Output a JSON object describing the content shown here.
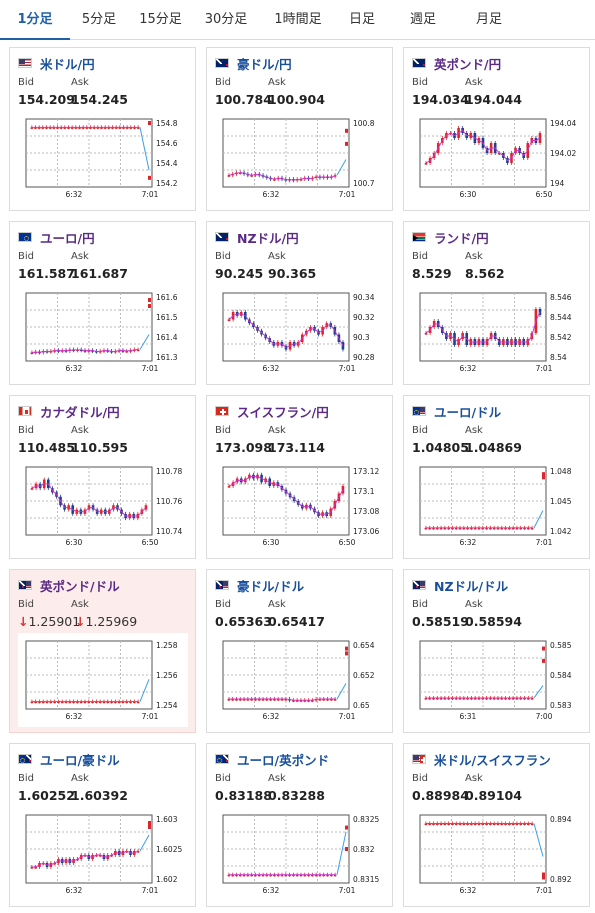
{
  "tabs": [
    "1分足",
    "5分足",
    "15分足",
    "30分足",
    "1時間足",
    "日足",
    "週足",
    "月足"
  ],
  "active_tab": 0,
  "colors": {
    "up": "#e0242d",
    "down": "#1f3e8f",
    "ma": "#cc33cc",
    "line": "#3aa0e8",
    "grid": "#bbbbbb",
    "accent": "#1f5fa8"
  },
  "cards": [
    {
      "title": "米ドル/円",
      "flag": "us-flag",
      "bid": "154.209",
      "ask": "154.245",
      "yticks": [
        "154.8",
        "154.6",
        "154.4",
        "154.2"
      ],
      "xticks": [
        "6:32",
        "7:01"
      ],
      "ymin": 154.15,
      "ymax": 154.85,
      "candles": [
        154.8,
        154.8,
        154.8,
        154.8,
        154.8,
        154.8,
        154.8,
        154.8,
        154.8,
        154.8,
        154.8,
        154.8,
        154.8,
        154.8,
        154.8,
        154.8,
        154.8,
        154.8,
        154.8,
        154.8,
        154.8,
        154.8,
        154.8,
        154.8,
        154.8,
        154.8,
        154.8,
        154.8,
        154.8,
        154.8
      ],
      "tail": [
        154.8,
        154.3
      ],
      "dot": [
        154.85,
        154.21
      ],
      "title_color": "blue"
    },
    {
      "title": "豪ドル/円",
      "flag": "au-flag",
      "bid": "100.784",
      "ask": "100.904",
      "yticks": [
        "100.8",
        "100.7"
      ],
      "xticks": [
        "6:32",
        "7:01"
      ],
      "ymin": 100.63,
      "ymax": 100.86,
      "candles": [
        100.66,
        100.665,
        100.67,
        100.67,
        100.665,
        100.66,
        100.66,
        100.665,
        100.66,
        100.655,
        100.65,
        100.645,
        100.645,
        100.65,
        100.645,
        100.64,
        100.645,
        100.64,
        100.645,
        100.645,
        100.65,
        100.645,
        100.65,
        100.655,
        100.65,
        100.655,
        100.65,
        100.655,
        100.66
      ],
      "tail": [
        100.66,
        100.72
      ],
      "dot": [
        100.83,
        100.78
      ],
      "title_color": "blue"
    },
    {
      "title": "英ポンド/円",
      "flag": "gb-flag",
      "bid": "194.034",
      "ask": "194.044",
      "yticks": [
        "194.04",
        "194.02",
        "194"
      ],
      "xticks": [
        "6:30",
        "6:50"
      ],
      "ymin": 193.99,
      "ymax": 194.05,
      "candles": [
        194.01,
        194.015,
        194.02,
        194.03,
        194.035,
        194.04,
        194.04,
        194.035,
        194.045,
        194.04,
        194.035,
        194.04,
        194.03,
        194.035,
        194.025,
        194.02,
        194.03,
        194.02,
        194.02,
        194.015,
        194.01,
        194.02,
        194.025,
        194.02,
        194.015,
        194.03,
        194.035,
        194.03,
        194.04
      ],
      "tail": null,
      "dot": null,
      "title_color": "purple"
    },
    {
      "title": "ユーロ/円",
      "flag": "eu-flag",
      "bid": "161.587",
      "ask": "161.687",
      "yticks": [
        "161.6",
        "161.5",
        "161.4",
        "161.3"
      ],
      "xticks": [
        "6:32",
        "7:01"
      ],
      "ymin": 161.25,
      "ymax": 161.65,
      "candles": [
        161.28,
        161.285,
        161.28,
        161.29,
        161.285,
        161.29,
        161.295,
        161.29,
        161.295,
        161.29,
        161.3,
        161.295,
        161.3,
        161.295,
        161.29,
        161.295,
        161.29,
        161.285,
        161.29,
        161.295,
        161.29,
        161.285,
        161.29,
        161.295,
        161.29,
        161.29,
        161.295,
        161.3,
        161.3
      ],
      "tail": [
        161.3,
        161.4
      ],
      "dot": [
        161.63,
        161.59
      ],
      "title_color": "purple"
    },
    {
      "title": "NZドル/円",
      "flag": "nz-flag",
      "bid": "90.245",
      "ask": "90.365",
      "yticks": [
        "90.34",
        "90.32",
        "90.3",
        "90.28"
      ],
      "xticks": [
        "6:32",
        "7:01"
      ],
      "ymin": 90.27,
      "ymax": 90.35,
      "candles": [
        90.32,
        90.33,
        90.325,
        90.33,
        90.32,
        90.315,
        90.31,
        90.305,
        90.3,
        90.295,
        90.29,
        90.285,
        90.29,
        90.285,
        90.28,
        90.29,
        90.285,
        90.29,
        90.3,
        90.305,
        90.31,
        90.305,
        90.3,
        90.31,
        90.315,
        90.31,
        90.3,
        90.29,
        90.28
      ],
      "tail": null,
      "dot": null,
      "title_color": "purple"
    },
    {
      "title": "ランド/円",
      "flag": "za-flag",
      "bid": "8.529",
      "ask": "8.562",
      "yticks": [
        "8.546",
        "8.544",
        "8.542",
        "8.54"
      ],
      "xticks": [
        "6:32",
        "7:01"
      ],
      "ymin": 8.538,
      "ymax": 8.548,
      "candles": [
        8.542,
        8.543,
        8.544,
        8.543,
        8.542,
        8.541,
        8.542,
        8.54,
        8.541,
        8.542,
        8.54,
        8.541,
        8.54,
        8.541,
        8.54,
        8.541,
        8.542,
        8.541,
        8.54,
        8.541,
        8.54,
        8.541,
        8.54,
        8.541,
        8.54,
        8.541,
        8.542,
        8.546,
        8.545
      ],
      "tail": null,
      "dot": null,
      "title_color": "purple"
    },
    {
      "title": "カナダドル/円",
      "flag": "ca-flag",
      "bid": "110.485",
      "ask": "110.595",
      "yticks": [
        "110.78",
        "110.76",
        "110.74"
      ],
      "xticks": [
        "6:30",
        "6:50"
      ],
      "ymin": 110.72,
      "ymax": 110.79,
      "candles": [
        110.77,
        110.775,
        110.77,
        110.78,
        110.77,
        110.765,
        110.76,
        110.75,
        110.745,
        110.75,
        110.74,
        110.745,
        110.74,
        110.745,
        110.75,
        110.745,
        110.74,
        110.745,
        110.74,
        110.745,
        110.75,
        110.745,
        110.74,
        110.735,
        110.74,
        110.735,
        110.74,
        110.745,
        110.75
      ],
      "tail": null,
      "dot": null,
      "title_color": "purple"
    },
    {
      "title": "スイスフラン/円",
      "flag": "ch-flag",
      "bid": "173.098",
      "ask": "173.114",
      "yticks": [
        "173.12",
        "173.1",
        "173.08",
        "173.06"
      ],
      "xticks": [
        "6:30",
        "6:50"
      ],
      "ymin": 173.05,
      "ymax": 173.13,
      "candles": [
        173.11,
        173.115,
        173.12,
        173.115,
        173.12,
        173.125,
        173.12,
        173.125,
        173.115,
        173.12,
        173.11,
        173.115,
        173.11,
        173.105,
        173.1,
        173.095,
        173.09,
        173.085,
        173.08,
        173.085,
        173.08,
        173.075,
        173.07,
        173.075,
        173.07,
        173.08,
        173.09,
        173.1,
        173.11
      ],
      "tail": null,
      "dot": null,
      "title_color": "purple"
    },
    {
      "title": "ユーロ/ドル",
      "flag": "eu-us-flag",
      "bid": "1.04805",
      "ask": "1.04869",
      "yticks": [
        "1.048",
        "1.045",
        "1.042"
      ],
      "xticks": [
        "6:32",
        "7:01"
      ],
      "ymin": 1.0412,
      "ymax": 1.0488,
      "candles": [
        1.0416,
        1.0416,
        1.0416,
        1.0416,
        1.0416,
        1.0416,
        1.0416,
        1.0416,
        1.0416,
        1.0416,
        1.0416,
        1.0416,
        1.0416,
        1.0416,
        1.0416,
        1.0416,
        1.0416,
        1.0416,
        1.0416,
        1.0416,
        1.0416,
        1.0416,
        1.0416,
        1.0416,
        1.0416,
        1.0416,
        1.0416,
        1.0416,
        1.0416
      ],
      "tail": [
        1.0416,
        1.0438
      ],
      "dot": [
        1.0484,
        1.048
      ],
      "title_color": "blue"
    },
    {
      "title": "英ポンド/ドル",
      "flag": "gb-us-flag",
      "bid_arrow": "↓",
      "bid": "1.25901",
      "ask_arrow": "↓",
      "ask": "1.25969",
      "yticks": [
        "1.258",
        "1.256",
        "1.254"
      ],
      "xticks": [
        "6:32",
        "7:01"
      ],
      "ymin": 1.2525,
      "ymax": 1.2595,
      "candles": [
        1.2529,
        1.2529,
        1.2529,
        1.2529,
        1.2529,
        1.2529,
        1.2529,
        1.2529,
        1.2529,
        1.2529,
        1.2529,
        1.2529,
        1.2529,
        1.2529,
        1.2529,
        1.2529,
        1.2529,
        1.2529,
        1.2529,
        1.2529,
        1.2529,
        1.2529,
        1.2529,
        1.2529,
        1.2529,
        1.2529,
        1.2529,
        1.2529,
        1.2529
      ],
      "tail": [
        1.2529,
        1.2555
      ],
      "dot": null,
      "title_color": "purple",
      "highlight": true
    },
    {
      "title": "豪ドル/ドル",
      "flag": "au-us-flag",
      "bid": "0.65363",
      "ask": "0.65417",
      "yticks": [
        "0.654",
        "0.652",
        "0.65"
      ],
      "xticks": [
        "6:32",
        "7:01"
      ],
      "ymin": 0.6494,
      "ymax": 0.6544,
      "candles": [
        0.6499,
        0.6499,
        0.6499,
        0.6499,
        0.6499,
        0.6499,
        0.6499,
        0.6499,
        0.6499,
        0.6499,
        0.6499,
        0.6499,
        0.6499,
        0.6499,
        0.6499,
        0.6499,
        0.6498,
        0.6498,
        0.6498,
        0.6498,
        0.6498,
        0.6498,
        0.6498,
        0.6499,
        0.6499,
        0.6499,
        0.6499,
        0.6499,
        0.6499
      ],
      "tail": [
        0.6499,
        0.6512
      ],
      "dot": [
        0.6541,
        0.6537
      ],
      "title_color": "blue"
    },
    {
      "title": "NZドル/ドル",
      "flag": "nz-us-flag",
      "bid": "0.58519",
      "ask": "0.58594",
      "yticks": [
        "0.585",
        "0.584",
        "0.583"
      ],
      "xticks": [
        "6:31",
        "7:00"
      ],
      "ymin": 0.5827,
      "ymax": 0.5861,
      "candles": [
        0.5831,
        0.5831,
        0.5831,
        0.5831,
        0.5831,
        0.5831,
        0.5831,
        0.5831,
        0.5831,
        0.5831,
        0.5831,
        0.5831,
        0.5831,
        0.5831,
        0.5831,
        0.5831,
        0.5831,
        0.5831,
        0.5831,
        0.5831,
        0.5831,
        0.5831,
        0.5831,
        0.5831,
        0.5831,
        0.5831,
        0.5831,
        0.5831,
        0.5831
      ],
      "tail": [
        0.5831,
        0.5838
      ],
      "dot": [
        0.5859,
        0.5852
      ],
      "title_color": "blue"
    },
    {
      "title": "ユーロ/豪ドル",
      "flag": "eu-au-flag",
      "bid": "1.60252",
      "ask": "1.60392",
      "yticks": [
        "1.603",
        "1.6025",
        "1.602"
      ],
      "xticks": [
        "6:32",
        "7:01"
      ],
      "ymin": 1.6018,
      "ymax": 1.6033,
      "candles": [
        1.6021,
        1.6021,
        1.6022,
        1.6022,
        1.6021,
        1.6022,
        1.6022,
        1.6023,
        1.6022,
        1.6023,
        1.6022,
        1.6023,
        1.6023,
        1.6024,
        1.6024,
        1.6023,
        1.6024,
        1.6024,
        1.6024,
        1.6023,
        1.6024,
        1.6024,
        1.6025,
        1.6024,
        1.6025,
        1.6025,
        1.6024,
        1.6025,
        1.6025
      ],
      "tail": [
        1.6025,
        1.6029
      ],
      "dot": [
        1.6032,
        1.6031
      ],
      "title_color": "blue"
    },
    {
      "title": "ユーロ/英ポンド",
      "flag": "eu-gb-flag",
      "bid": "0.83188",
      "ask": "0.83288",
      "yticks": [
        "0.8325",
        "0.832",
        "0.8315"
      ],
      "xticks": [
        "6:32",
        "7:01"
      ],
      "ymin": 0.8312,
      "ymax": 0.8326,
      "candles": [
        0.8313,
        0.8313,
        0.8313,
        0.8313,
        0.8313,
        0.8313,
        0.8313,
        0.8313,
        0.8313,
        0.8313,
        0.8313,
        0.8313,
        0.8313,
        0.8313,
        0.8313,
        0.8313,
        0.8313,
        0.8313,
        0.8313,
        0.8313,
        0.8313,
        0.8313,
        0.8313,
        0.8313,
        0.8313,
        0.8313,
        0.8313,
        0.8313,
        0.8313
      ],
      "tail": [
        0.8313,
        0.8323
      ],
      "dot": [
        0.8324,
        0.8319
      ],
      "title_color": "blue"
    },
    {
      "title": "米ドル/スイスフラン",
      "flag": "us-ch-flag",
      "bid": "0.88984",
      "ask": "0.89104",
      "yticks": [
        "0.894",
        "0.892"
      ],
      "xticks": [
        "6:32",
        "7:01"
      ],
      "ymin": 0.8908,
      "ymax": 0.8948,
      "candles": [
        0.8945,
        0.8945,
        0.8945,
        0.8945,
        0.8945,
        0.8945,
        0.8945,
        0.8945,
        0.8945,
        0.8945,
        0.8945,
        0.8945,
        0.8945,
        0.8945,
        0.8945,
        0.8945,
        0.8945,
        0.8945,
        0.8945,
        0.8945,
        0.8945,
        0.8945,
        0.8945,
        0.8945,
        0.8945,
        0.8945,
        0.8945,
        0.8945,
        0.8945
      ],
      "tail": [
        0.8945,
        0.8923
      ],
      "dot": [
        0.8911,
        0.8909
      ],
      "title_color": "blue"
    }
  ],
  "labels": {
    "bid": "Bid",
    "ask": "Ask"
  }
}
